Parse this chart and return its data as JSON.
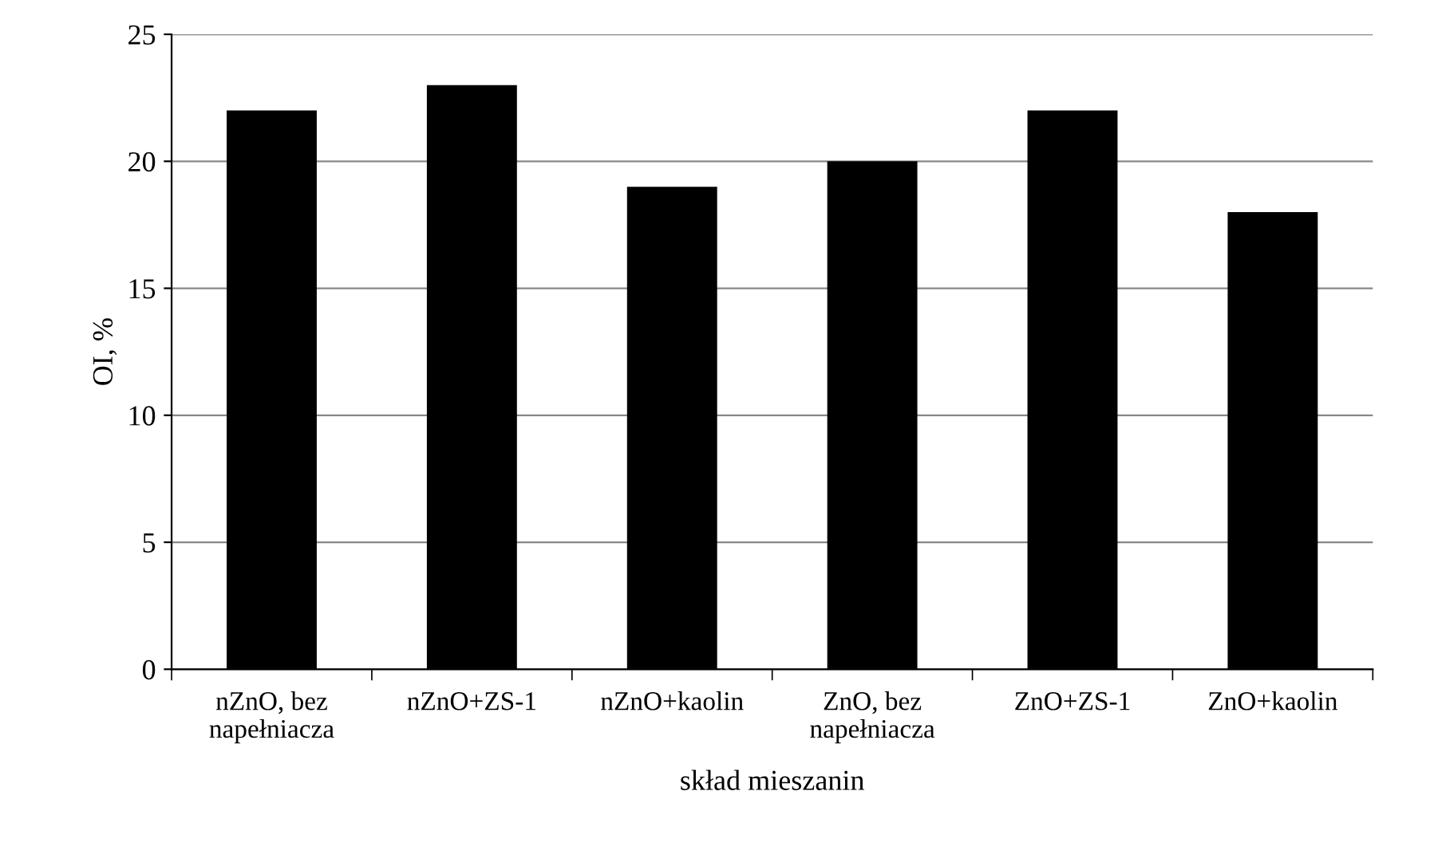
{
  "chart_data": {
    "type": "bar",
    "xlabel": "skład mieszanin",
    "ylabel": "OI, %",
    "categories": [
      "nZnO, bez\nnapełniacza",
      "nZnO+ZS-1",
      "nZnO+kaolin",
      "ZnO, bez\nnapełniacza",
      "ZnO+ZS-1",
      "ZnO+kaolin"
    ],
    "values": [
      22,
      23,
      19,
      20,
      22,
      18
    ],
    "color": "#000000",
    "ylim": [
      0,
      25
    ],
    "yticks": [
      0,
      5,
      10,
      15,
      20,
      25
    ],
    "grid": "y",
    "legend": false
  }
}
